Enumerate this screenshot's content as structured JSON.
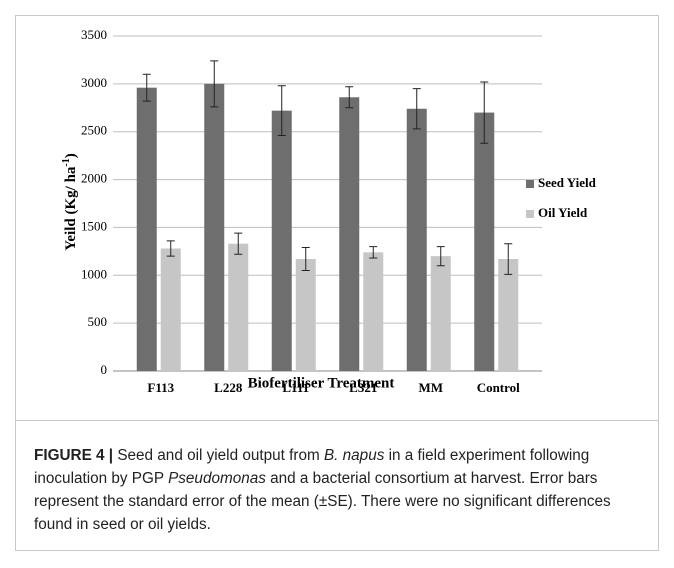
{
  "chart_data": {
    "type": "bar",
    "categories": [
      "F113",
      "L228",
      "L111",
      "L321",
      "MM",
      "Control"
    ],
    "series": [
      {
        "name": "Seed Yield",
        "color": "#6e6e6e",
        "values": [
          2960,
          3000,
          2720,
          2860,
          2740,
          2700
        ],
        "errors": [
          140,
          240,
          260,
          110,
          210,
          320
        ]
      },
      {
        "name": "Oil Yield",
        "color": "#c6c6c6",
        "values": [
          1280,
          1330,
          1170,
          1240,
          1200,
          1170
        ],
        "errors": [
          80,
          110,
          120,
          60,
          100,
          160
        ]
      }
    ],
    "ylim": [
      0,
      3500
    ],
    "yticks": [
      0,
      500,
      1000,
      1500,
      2000,
      2500,
      3000,
      3500
    ],
    "grid": true,
    "xlabel": "Biofertiliser Treatment",
    "ylabel": "Yeild (Kg/ ha",
    "ylabel_sup": "-1",
    "ylabel_end": ")",
    "legend": "right"
  },
  "caption": {
    "label": "FIGURE 4 |",
    "parts": [
      {
        "text": " Seed and oil yield output from ",
        "italic": false
      },
      {
        "text": "B. napus",
        "italic": true
      },
      {
        "text": " in a field experiment following inoculation by PGP ",
        "italic": false
      },
      {
        "text": "Pseudomonas",
        "italic": true
      },
      {
        "text": " and a bacterial consortium at harvest. Error bars represent the standard error of the mean (±SE). There were no significant differences found in seed or oil yields.",
        "italic": false
      }
    ]
  }
}
